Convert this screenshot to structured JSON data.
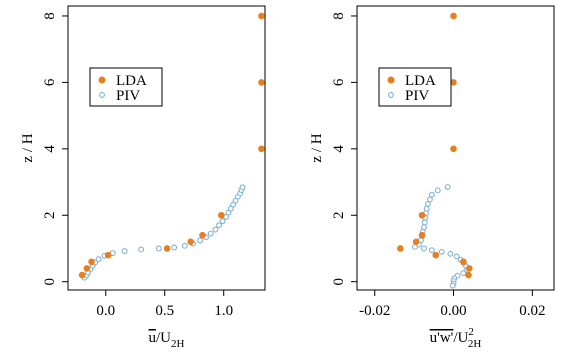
{
  "colors": {
    "lda": "#E87E1E",
    "piv": "#7FB2D9",
    "axis": "#000000"
  },
  "legend": {
    "lda_label": "LDA",
    "piv_label": "PIV"
  },
  "chart_data": [
    {
      "type": "scatter",
      "title": "",
      "xlabel": "u/U2H",
      "xlabel_parts": {
        "base": "u",
        "sub": "2H"
      },
      "ylabel": "z / H",
      "xlim": [
        -0.32,
        1.35
      ],
      "ylim": [
        -0.25,
        8.3
      ],
      "xticks": [
        0.0,
        0.5,
        1.0
      ],
      "xtick_labels": [
        "0.0",
        "0.5",
        "1.0"
      ],
      "yticks": [
        0,
        2,
        4,
        6,
        8
      ],
      "ytick_labels": [
        "0",
        "2",
        "4",
        "6",
        "8"
      ],
      "legend_position": "upper-left",
      "series": [
        {
          "name": "LDA",
          "marker": "filled-circle",
          "points": [
            [
              1.32,
              8.0
            ],
            [
              1.32,
              6.0
            ],
            [
              1.32,
              4.0
            ],
            [
              0.98,
              2.0
            ],
            [
              0.82,
              1.4
            ],
            [
              0.72,
              1.2
            ],
            [
              0.52,
              1.0
            ],
            [
              0.02,
              0.8
            ],
            [
              -0.12,
              0.6
            ],
            [
              -0.16,
              0.4
            ],
            [
              -0.2,
              0.2
            ]
          ]
        },
        {
          "name": "PIV",
          "marker": "open-circle",
          "points": [
            [
              -0.18,
              0.12
            ],
            [
              -0.16,
              0.2
            ],
            [
              -0.15,
              0.28
            ],
            [
              -0.13,
              0.38
            ],
            [
              -0.11,
              0.48
            ],
            [
              -0.09,
              0.58
            ],
            [
              -0.06,
              0.68
            ],
            [
              -0.01,
              0.78
            ],
            [
              0.06,
              0.86
            ],
            [
              0.16,
              0.92
            ],
            [
              0.3,
              0.97
            ],
            [
              0.45,
              1.0
            ],
            [
              0.58,
              1.03
            ],
            [
              0.67,
              1.08
            ],
            [
              0.74,
              1.15
            ],
            [
              0.8,
              1.24
            ],
            [
              0.85,
              1.34
            ],
            [
              0.89,
              1.45
            ],
            [
              0.93,
              1.57
            ],
            [
              0.96,
              1.7
            ],
            [
              0.99,
              1.82
            ],
            [
              1.02,
              1.95
            ],
            [
              1.04,
              2.08
            ],
            [
              1.06,
              2.2
            ],
            [
              1.08,
              2.32
            ],
            [
              1.1,
              2.44
            ],
            [
              1.12,
              2.56
            ],
            [
              1.14,
              2.66
            ],
            [
              1.15,
              2.76
            ],
            [
              1.16,
              2.84
            ]
          ]
        }
      ]
    },
    {
      "type": "scatter",
      "title": "",
      "xlabel": "u'w'/U2H^2",
      "xlabel_parts": {
        "base": "u'w'",
        "sub": "2H",
        "sup": "2"
      },
      "ylabel": "z / H",
      "xlim": [
        -0.0245,
        0.0255
      ],
      "ylim": [
        -0.25,
        8.3
      ],
      "xticks": [
        -0.02,
        0.0,
        0.02
      ],
      "xtick_labels": [
        "-0.02",
        "0.00",
        "0.02"
      ],
      "yticks": [
        0,
        2,
        4,
        6,
        8
      ],
      "ytick_labels": [
        "0",
        "2",
        "4",
        "6",
        "8"
      ],
      "legend_position": "upper-left",
      "series": [
        {
          "name": "LDA",
          "marker": "filled-circle",
          "points": [
            [
              0.0,
              8.0
            ],
            [
              0.0,
              6.0
            ],
            [
              0.0,
              4.0
            ],
            [
              -0.008,
              2.0
            ],
            [
              -0.008,
              1.4
            ],
            [
              -0.0095,
              1.2
            ],
            [
              -0.0135,
              1.0
            ],
            [
              -0.0045,
              0.8
            ],
            [
              0.0025,
              0.6
            ],
            [
              0.004,
              0.4
            ],
            [
              0.0038,
              0.2
            ]
          ]
        },
        {
          "name": "PIV",
          "marker": "open-circle",
          "points": [
            [
              -0.0015,
              2.85
            ],
            [
              -0.004,
              2.75
            ],
            [
              -0.0055,
              2.62
            ],
            [
              -0.006,
              2.48
            ],
            [
              -0.0065,
              2.34
            ],
            [
              -0.0068,
              2.2
            ],
            [
              -0.007,
              2.06
            ],
            [
              -0.0072,
              1.92
            ],
            [
              -0.0073,
              1.78
            ],
            [
              -0.0075,
              1.64
            ],
            [
              -0.0078,
              1.5
            ],
            [
              -0.008,
              1.36
            ],
            [
              -0.0083,
              1.24
            ],
            [
              -0.0088,
              1.12
            ],
            [
              -0.0098,
              1.05
            ],
            [
              -0.0075,
              1.0
            ],
            [
              -0.0055,
              0.95
            ],
            [
              -0.003,
              0.9
            ],
            [
              -0.0008,
              0.84
            ],
            [
              0.0008,
              0.76
            ],
            [
              0.0018,
              0.66
            ],
            [
              0.0026,
              0.56
            ],
            [
              0.0032,
              0.46
            ],
            [
              0.0035,
              0.36
            ],
            [
              0.0025,
              0.26
            ],
            [
              0.001,
              0.18
            ],
            [
              0.0002,
              0.1
            ],
            [
              0.0,
              0.02
            ],
            [
              0.0,
              -0.06
            ],
            [
              -0.0002,
              -0.12
            ]
          ]
        }
      ]
    }
  ]
}
